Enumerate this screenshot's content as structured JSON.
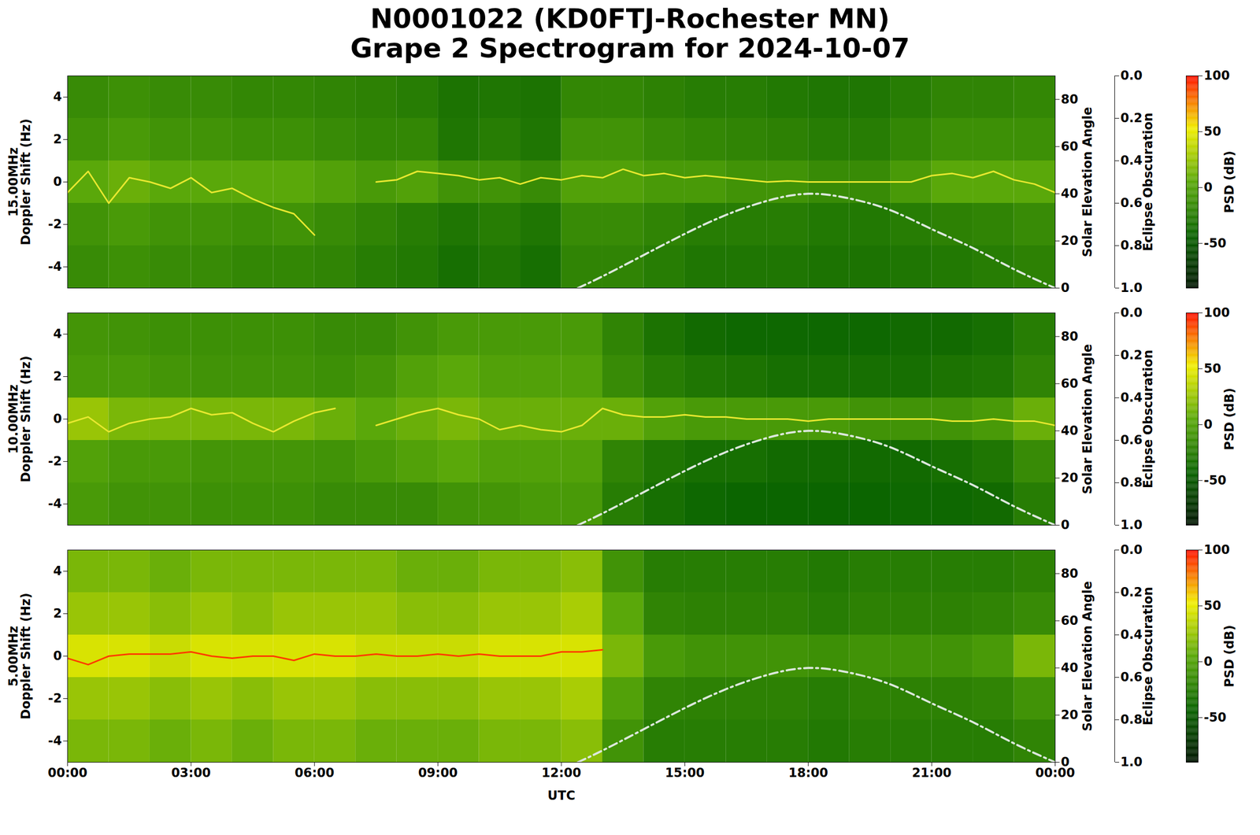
{
  "title": "N0001022 (KD0FTJ-Rochester MN)",
  "subtitle": "Grape 2 Spectrogram for 2024-10-07",
  "solar_elevation": {
    "x": [
      12.4,
      13,
      14,
      15,
      16,
      17,
      18,
      19,
      20,
      21,
      22,
      23,
      24
    ],
    "values": [
      0,
      5,
      14,
      23,
      31,
      37,
      40,
      38,
      33,
      25,
      17,
      8,
      0
    ],
    "color": "#dde8dd",
    "line_style": "dashdot",
    "axis": "y2"
  },
  "chart_data": [
    {
      "type": "heatmap",
      "ylabel": "15.00MHz\nDoppler Shift (Hz)",
      "xlim": [
        0,
        24
      ],
      "ylim": [
        -5,
        5
      ],
      "yticks": [
        -4,
        -2,
        0,
        2,
        4
      ],
      "y2label": "Solar Elevation Angle",
      "y2lim": [
        0,
        90
      ],
      "y2ticks": [
        0,
        20,
        40,
        60,
        80
      ],
      "y3label": "Eclipse Obscuration",
      "y3lim": [
        1,
        0
      ],
      "y3ticks": [
        {
          "value": 0,
          "label": "0.0"
        },
        {
          "value": 0.2,
          "label": "0.2"
        },
        {
          "value": 0.4,
          "label": "0.4"
        },
        {
          "value": 0.6,
          "label": "0.6"
        },
        {
          "value": 0.8,
          "label": "0.8"
        },
        {
          "value": 1,
          "label": "1.0"
        }
      ],
      "clabel": "PSD (dB)",
      "clim": [
        -90,
        100
      ],
      "cticks": [
        -50,
        0,
        50,
        100
      ],
      "time_bins": [
        0,
        1,
        2,
        3,
        4,
        5,
        6,
        7,
        8,
        9,
        10,
        11,
        12,
        13,
        14,
        15,
        16,
        17,
        18,
        19,
        20,
        21,
        22,
        23,
        24
      ],
      "doppler_bins": [
        -5,
        -3,
        -1,
        1,
        3,
        5
      ],
      "psd": [
        [
          -15,
          -12,
          -15,
          -15,
          -18,
          -18,
          -20,
          -25,
          -28,
          -35,
          -30,
          -35,
          -20,
          -20,
          -25,
          -30,
          -30,
          -30,
          -32,
          -32,
          -30,
          -28,
          -25,
          -22
        ],
        [
          -10,
          -5,
          -10,
          -10,
          -12,
          -10,
          -15,
          -20,
          -25,
          -30,
          -25,
          -30,
          -15,
          -15,
          -20,
          -25,
          -25,
          -25,
          -28,
          -28,
          -25,
          -22,
          -20,
          -15
        ],
        [
          5,
          10,
          5,
          5,
          5,
          5,
          0,
          -5,
          0,
          -10,
          -10,
          -15,
          0,
          0,
          -5,
          -5,
          -10,
          -10,
          -15,
          -15,
          -5,
          5,
          5,
          5
        ],
        [
          -10,
          -5,
          -10,
          -10,
          -12,
          -12,
          -15,
          -18,
          -18,
          -30,
          -25,
          -30,
          -10,
          -10,
          -15,
          -18,
          -20,
          -22,
          -25,
          -25,
          -18,
          -12,
          -12,
          -12
        ],
        [
          -15,
          -12,
          -15,
          -15,
          -18,
          -18,
          -20,
          -22,
          -25,
          -32,
          -30,
          -32,
          -18,
          -18,
          -22,
          -25,
          -25,
          -28,
          -30,
          -30,
          -25,
          -20,
          -20,
          -18
        ]
      ],
      "trace": {
        "color": "#e8e830",
        "x": [
          0,
          0.5,
          1,
          1.5,
          2,
          2.5,
          3,
          3.5,
          4,
          4.5,
          5,
          5.5,
          6,
          6.5,
          7,
          7.5,
          8,
          8.5,
          9,
          9.5,
          10,
          10.5,
          11,
          11.5,
          12,
          12.5,
          13,
          13.5,
          14,
          14.5,
          15,
          15.5,
          16,
          16.5,
          17,
          17.5,
          18,
          18.5,
          19,
          19.5,
          20,
          20.5,
          21,
          21.5,
          22,
          22.5,
          23,
          23.5,
          24
        ],
        "values": [
          -0.5,
          0.5,
          -1.0,
          0.2,
          0.0,
          -0.3,
          0.2,
          -0.5,
          -0.3,
          -0.8,
          -1.2,
          -1.5,
          -2.5,
          null,
          null,
          0.0,
          0.1,
          0.5,
          0.4,
          0.3,
          0.1,
          0.2,
          -0.1,
          0.2,
          0.1,
          0.3,
          0.2,
          0.6,
          0.3,
          0.4,
          0.2,
          0.3,
          0.2,
          0.1,
          0.0,
          0.05,
          0.0,
          0.0,
          0.0,
          0.0,
          0.0,
          0.0,
          0.3,
          0.4,
          0.2,
          0.5,
          0.1,
          -0.1,
          -0.5
        ]
      }
    },
    {
      "type": "heatmap",
      "ylabel": "10.00MHz\nDoppler Shift (Hz)",
      "xlim": [
        0,
        24
      ],
      "ylim": [
        -5,
        5
      ],
      "yticks": [
        -4,
        -2,
        0,
        2,
        4
      ],
      "y2label": "Solar Elevation Angle",
      "y2lim": [
        0,
        90
      ],
      "y2ticks": [
        0,
        20,
        40,
        60,
        80
      ],
      "y3label": "Eclipse Obscuration",
      "y3lim": [
        1,
        0
      ],
      "y3ticks": [
        {
          "value": 0,
          "label": "0.0"
        },
        {
          "value": 0.2,
          "label": "0.2"
        },
        {
          "value": 0.4,
          "label": "0.4"
        },
        {
          "value": 0.6,
          "label": "0.6"
        },
        {
          "value": 0.8,
          "label": "0.8"
        },
        {
          "value": 1,
          "label": "1.0"
        }
      ],
      "clabel": "PSD (dB)",
      "clim": [
        -90,
        100
      ],
      "cticks": [
        -50,
        0,
        50,
        100
      ],
      "time_bins": [
        0,
        1,
        2,
        3,
        4,
        5,
        6,
        7,
        8,
        9,
        10,
        11,
        12,
        13,
        14,
        15,
        16,
        17,
        18,
        19,
        20,
        21,
        22,
        23,
        24
      ],
      "doppler_bins": [
        -5,
        -3,
        -1,
        1,
        3,
        5
      ],
      "psd": [
        [
          -5,
          -10,
          -10,
          -12,
          -12,
          -12,
          -15,
          -15,
          -15,
          -10,
          -8,
          -5,
          -5,
          -25,
          -35,
          -40,
          -42,
          -42,
          -42,
          -42,
          -40,
          -40,
          -38,
          -25
        ],
        [
          0,
          -5,
          -5,
          -8,
          -8,
          -8,
          -10,
          -5,
          0,
          5,
          0,
          0,
          0,
          -20,
          -30,
          -35,
          -35,
          -38,
          -38,
          -38,
          -38,
          -35,
          -30,
          -15
        ],
        [
          25,
          15,
          15,
          15,
          15,
          15,
          10,
          5,
          10,
          15,
          10,
          10,
          10,
          10,
          0,
          -5,
          -5,
          -5,
          -5,
          -10,
          -10,
          -10,
          -5,
          10
        ],
        [
          -5,
          -5,
          -8,
          -10,
          -10,
          -10,
          -12,
          -8,
          0,
          5,
          0,
          0,
          0,
          -15,
          -25,
          -30,
          -32,
          -35,
          -35,
          -35,
          -35,
          -32,
          -30,
          -20
        ],
        [
          -8,
          -10,
          -12,
          -12,
          -12,
          -12,
          -15,
          -15,
          -10,
          -5,
          -5,
          -5,
          -5,
          -20,
          -32,
          -38,
          -40,
          -40,
          -40,
          -40,
          -38,
          -38,
          -35,
          -25
        ]
      ],
      "trace": {
        "color": "#e8e830",
        "x": [
          0,
          0.5,
          1,
          1.5,
          2,
          2.5,
          3,
          3.5,
          4,
          4.5,
          5,
          5.5,
          6,
          6.5,
          7,
          7.5,
          8,
          8.5,
          9,
          9.5,
          10,
          10.5,
          11,
          11.5,
          12,
          12.5,
          13,
          13.5,
          14,
          14.5,
          15,
          15.5,
          16,
          16.5,
          17,
          17.5,
          18,
          18.5,
          19,
          19.5,
          20,
          20.5,
          21,
          21.5,
          22,
          22.5,
          23,
          23.5,
          24
        ],
        "values": [
          -0.2,
          0.1,
          -0.6,
          -0.2,
          0.0,
          0.1,
          0.5,
          0.2,
          0.3,
          -0.2,
          -0.6,
          -0.1,
          0.3,
          0.5,
          null,
          -0.3,
          0.0,
          0.3,
          0.5,
          0.2,
          0.0,
          -0.5,
          -0.3,
          -0.5,
          -0.6,
          -0.3,
          0.5,
          0.2,
          0.1,
          0.1,
          0.2,
          0.1,
          0.1,
          0.0,
          0.0,
          0.0,
          -0.1,
          0.0,
          0.0,
          0.0,
          0.0,
          0.0,
          0.0,
          -0.1,
          -0.1,
          0.0,
          -0.1,
          -0.1,
          -0.3
        ]
      }
    },
    {
      "type": "heatmap",
      "ylabel": "5.00MHz\nDoppler Shift (Hz)",
      "xlabel": "UTC",
      "xlim": [
        0,
        24
      ],
      "xticks": [
        {
          "value": 0,
          "label": "00:00"
        },
        {
          "value": 3,
          "label": "03:00"
        },
        {
          "value": 6,
          "label": "06:00"
        },
        {
          "value": 9,
          "label": "09:00"
        },
        {
          "value": 12,
          "label": "12:00"
        },
        {
          "value": 15,
          "label": "15:00"
        },
        {
          "value": 18,
          "label": "18:00"
        },
        {
          "value": 21,
          "label": "21:00"
        },
        {
          "value": 24,
          "label": "00:00"
        }
      ],
      "ylim": [
        -5,
        5
      ],
      "yticks": [
        -4,
        -2,
        0,
        2,
        4
      ],
      "y2label": "Solar Elevation Angle",
      "y2lim": [
        0,
        90
      ],
      "y2ticks": [
        0,
        20,
        40,
        60,
        80
      ],
      "y3label": "Eclipse Obscuration",
      "y3lim": [
        1,
        0
      ],
      "y3ticks": [
        {
          "value": 0,
          "label": "0.0"
        },
        {
          "value": 0.2,
          "label": "0.2"
        },
        {
          "value": 0.4,
          "label": "0.4"
        },
        {
          "value": 0.6,
          "label": "0.6"
        },
        {
          "value": 0.8,
          "label": "0.8"
        },
        {
          "value": 1,
          "label": "1.0"
        }
      ],
      "clabel": "PSD (dB)",
      "clim": [
        -90,
        100
      ],
      "cticks": [
        -50,
        0,
        50,
        100
      ],
      "time_bins": [
        0,
        1,
        2,
        3,
        4,
        5,
        6,
        7,
        8,
        9,
        10,
        11,
        12,
        13,
        14,
        15,
        16,
        17,
        18,
        19,
        20,
        21,
        22,
        23,
        24
      ],
      "doppler_bins": [
        -5,
        -3,
        -1,
        1,
        3,
        5
      ],
      "psd": [
        [
          15,
          15,
          10,
          15,
          10,
          15,
          15,
          10,
          10,
          10,
          15,
          15,
          20,
          -10,
          -25,
          -25,
          -25,
          -25,
          -28,
          -25,
          -25,
          -25,
          -25,
          -20
        ],
        [
          25,
          25,
          20,
          25,
          20,
          25,
          25,
          20,
          20,
          20,
          25,
          25,
          30,
          0,
          -20,
          -22,
          -22,
          -22,
          -25,
          -22,
          -22,
          -22,
          -20,
          -10
        ],
        [
          45,
          45,
          40,
          45,
          45,
          45,
          45,
          40,
          40,
          40,
          45,
          45,
          45,
          15,
          -5,
          -10,
          -10,
          -10,
          -12,
          -10,
          -10,
          -10,
          -5,
          15
        ],
        [
          25,
          25,
          20,
          25,
          20,
          25,
          25,
          25,
          20,
          20,
          25,
          25,
          30,
          5,
          -20,
          -22,
          -22,
          -22,
          -25,
          -22,
          -22,
          -22,
          -20,
          -15
        ],
        [
          15,
          15,
          10,
          15,
          15,
          15,
          15,
          15,
          10,
          10,
          15,
          15,
          20,
          -10,
          -25,
          -25,
          -25,
          -25,
          -28,
          -25,
          -25,
          -25,
          -25,
          -22
        ]
      ],
      "trace": {
        "color": "#ff3c00",
        "x": [
          0,
          0.5,
          1,
          1.5,
          2,
          2.5,
          3,
          3.5,
          4,
          4.5,
          5,
          5.5,
          6,
          6.5,
          7,
          7.5,
          8,
          8.5,
          9,
          9.5,
          10,
          10.5,
          11,
          11.5,
          12,
          12.5,
          13,
          13.5,
          14,
          14.5,
          15,
          15.5,
          16,
          16.5,
          17,
          17.5,
          18,
          18.5,
          19,
          19.5,
          20,
          20.5,
          21,
          21.5,
          22,
          22.5,
          23,
          23.5,
          24
        ],
        "values": [
          -0.1,
          -0.4,
          0.0,
          0.1,
          0.1,
          0.1,
          0.2,
          0.0,
          -0.1,
          0.0,
          0.0,
          -0.2,
          0.1,
          0.0,
          0.0,
          0.1,
          0.0,
          0.0,
          0.1,
          0.0,
          0.1,
          0.0,
          0.0,
          0.0,
          0.2,
          0.2,
          0.3,
          null,
          null,
          null,
          null,
          null,
          null,
          null,
          null,
          null,
          null,
          null,
          null,
          null,
          null,
          null,
          null,
          null,
          null,
          null,
          null,
          null,
          null
        ]
      }
    }
  ]
}
